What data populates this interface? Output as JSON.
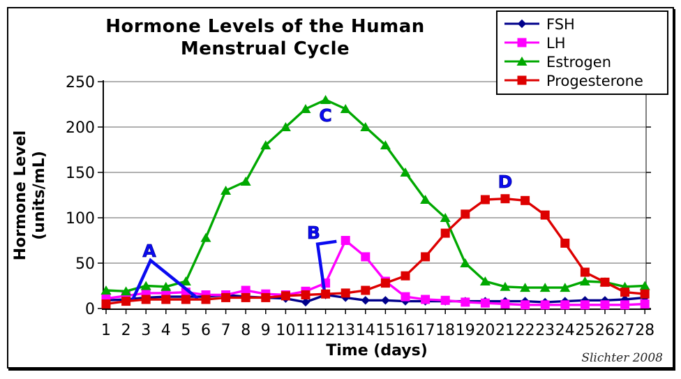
{
  "title": {
    "line1": "Hormone Levels of the Human",
    "line2": "Menstrual Cycle"
  },
  "frame": {
    "signature": "Slichter 2008"
  },
  "axes": {
    "x_title": "Time (days)",
    "y_title_line1": "Hormone Level",
    "y_title_line2": "(units/mL)"
  },
  "legend": {
    "items": [
      {
        "label": "FSH"
      },
      {
        "label": "LH"
      },
      {
        "label": "Estrogen"
      },
      {
        "label": "Progesterone"
      }
    ]
  },
  "chart_data": {
    "type": "line",
    "title": "Hormone Levels of the Human Menstrual Cycle",
    "xlabel": "Time (days)",
    "ylabel": "Hormone Level (units/mL)",
    "x": [
      1,
      2,
      3,
      4,
      5,
      6,
      7,
      8,
      9,
      10,
      11,
      12,
      13,
      14,
      15,
      16,
      17,
      18,
      19,
      20,
      21,
      22,
      23,
      24,
      25,
      26,
      27,
      28
    ],
    "xlim": [
      1,
      28
    ],
    "ylim": [
      0,
      250
    ],
    "yticks": [
      0,
      50,
      100,
      150,
      200,
      250
    ],
    "grid": true,
    "legend_position": "top-right",
    "grid_color": "#808080",
    "annotation_color": "#0a0af0",
    "series": [
      {
        "name": "FSH",
        "color": "#00008B",
        "marker": "diamond",
        "values": [
          9,
          10,
          12,
          13,
          13,
          13,
          15,
          13,
          12,
          11,
          7,
          15,
          12,
          9,
          9,
          8,
          8,
          8,
          8,
          8,
          8,
          8,
          7,
          8,
          9,
          9,
          10,
          12
        ]
      },
      {
        "name": "LH",
        "color": "#FF00FF",
        "marker": "square",
        "values": [
          11,
          14,
          17,
          17,
          18,
          15,
          15,
          20,
          16,
          15,
          19,
          28,
          75,
          57,
          30,
          13,
          10,
          9,
          7,
          6,
          5,
          4,
          4,
          4,
          4,
          4,
          4,
          5
        ]
      },
      {
        "name": "Estrogen",
        "color": "#00A800",
        "marker": "triangle",
        "values": [
          20,
          19,
          25,
          24,
          30,
          78,
          130,
          140,
          180,
          200,
          220,
          230,
          220,
          200,
          180,
          150,
          120,
          100,
          50,
          30,
          24,
          23,
          23,
          23,
          30,
          29,
          24,
          25
        ]
      },
      {
        "name": "Progesterone",
        "color": "#DD0000",
        "marker": "square",
        "values": [
          5,
          8,
          10,
          10,
          10,
          10,
          12,
          12,
          12,
          14,
          15,
          16,
          17,
          20,
          28,
          36,
          57,
          83,
          104,
          120,
          121,
          119,
          103,
          72,
          40,
          29,
          18,
          16
        ]
      }
    ],
    "annotations": [
      {
        "label": "A",
        "day": 3.17,
        "value": 57,
        "lines": [
          [
            [
              2.3,
              8
            ],
            [
              3.23,
              53
            ],
            [
              5.6,
              11
            ]
          ]
        ]
      },
      {
        "label": "B",
        "day": 11.4,
        "value": 77,
        "lines": [
          [
            [
              12.55,
              74
            ],
            [
              11.6,
              71
            ],
            [
              11.95,
              18
            ]
          ]
        ]
      },
      {
        "label": "C",
        "day": 12.0,
        "value": 206,
        "lines": []
      },
      {
        "label": "D",
        "day": 21.0,
        "value": 133,
        "lines": []
      }
    ]
  }
}
